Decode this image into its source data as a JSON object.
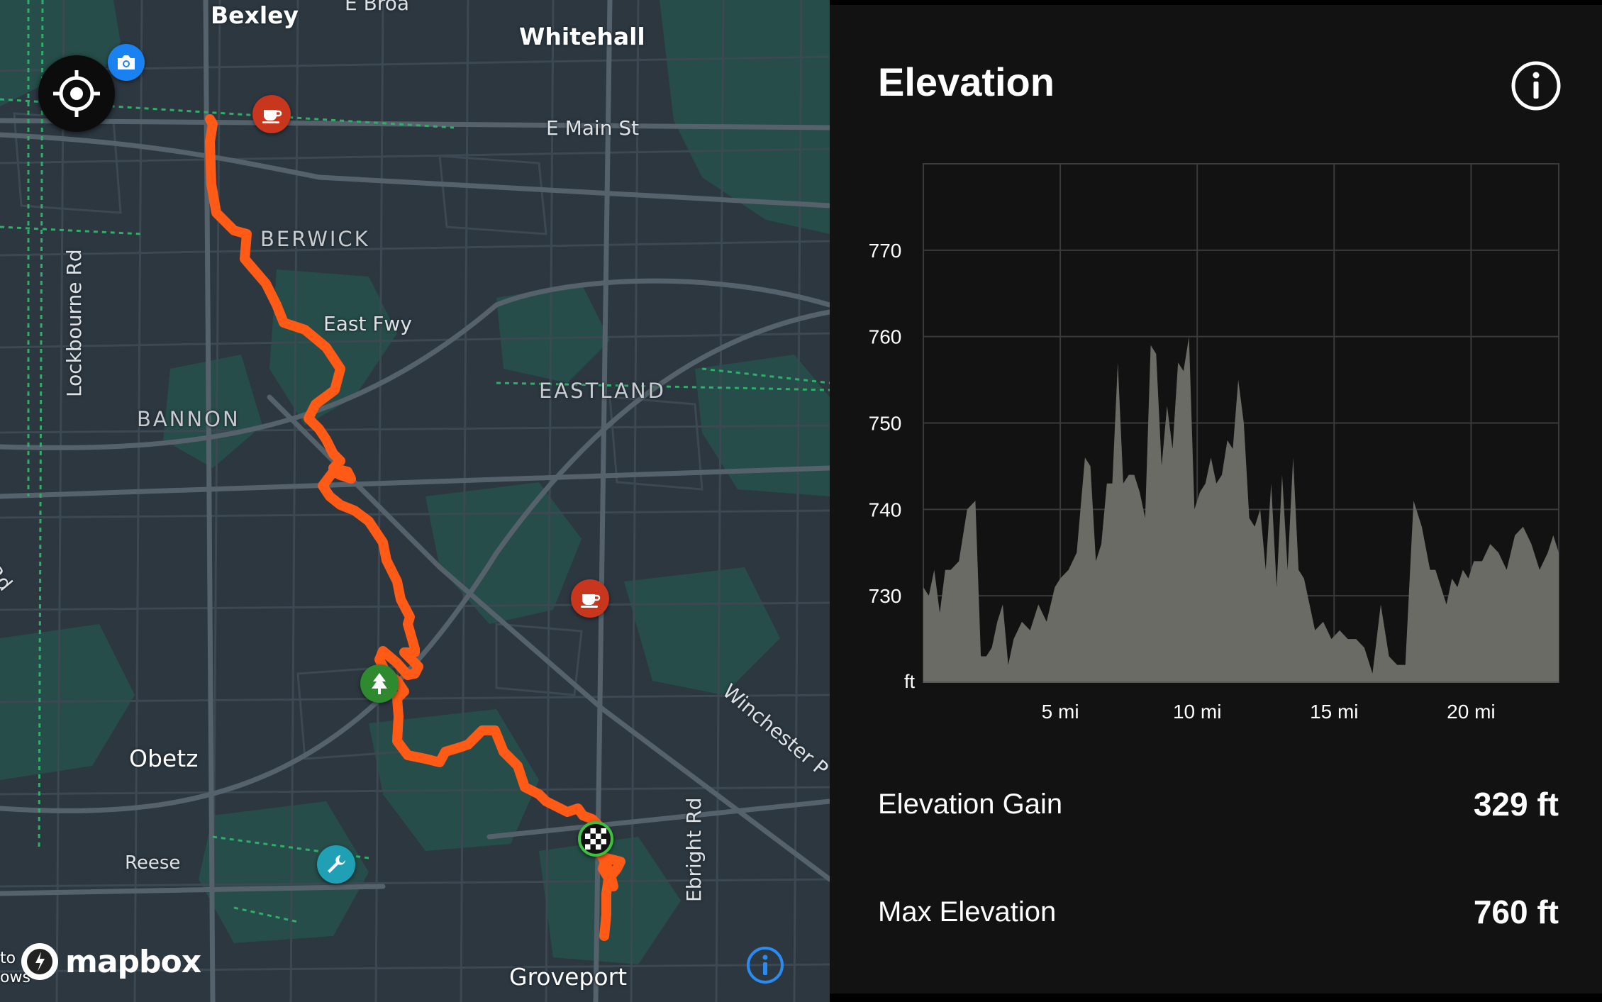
{
  "map": {
    "labels": {
      "bexley": "Bexley",
      "e_broad": "E Broa",
      "whitehall": "Whitehall",
      "e_main": "E Main St",
      "berwick": "BERWICK",
      "lockbourne": "Lockbourne Rd",
      "east_fwy": "East Fwy",
      "eastland": "EASTLAND",
      "bannon": "BANNON",
      "rd_left": "Rd",
      "obetz": "Obetz",
      "reese": "Reese",
      "winchester": "Winchester P",
      "ebright": "Ebright Rd",
      "groveport": "Groveport"
    },
    "attribution_fragment": [
      "to",
      "ows"
    ],
    "logo_text": "mapbox",
    "colors": {
      "route": "#ff5a16",
      "background": "#2c3740",
      "park": "#27524a",
      "road": "#4a5660"
    },
    "pois": [
      {
        "name": "coffee",
        "icon": "coffee-icon",
        "color": "#c8361e"
      },
      {
        "name": "coffee",
        "icon": "coffee-icon",
        "color": "#c8361e"
      },
      {
        "name": "park",
        "icon": "tree-icon",
        "color": "#2f8a2f"
      },
      {
        "name": "repair",
        "icon": "wrench-icon",
        "color": "#1fa0b4"
      },
      {
        "name": "photo",
        "icon": "camera-icon",
        "color": "#1a82f0"
      },
      {
        "name": "finish",
        "icon": "checkered-flag-icon",
        "color": "#111111"
      }
    ]
  },
  "panel": {
    "title": "Elevation",
    "stats": [
      {
        "label": "Elevation Gain",
        "value": "329 ft"
      },
      {
        "label": "Max Elevation",
        "value": "760 ft"
      }
    ]
  },
  "chart_data": {
    "type": "area",
    "title": "Elevation",
    "xlabel": "",
    "ylabel": "ft",
    "xlim": [
      0,
      23.2
    ],
    "ylim": [
      720,
      780
    ],
    "x_ticks": [
      "5 mi",
      "10 mi",
      "15 mi",
      "20 mi"
    ],
    "x_tick_values": [
      5,
      10,
      15,
      20
    ],
    "y_ticks": [
      "770",
      "760",
      "750",
      "740",
      "730"
    ],
    "y_tick_values": [
      770,
      760,
      750,
      740,
      730
    ],
    "grid": true,
    "fill_color": "#6b6b66",
    "x": [
      0,
      0.2,
      0.4,
      0.6,
      0.8,
      1.0,
      1.3,
      1.6,
      1.9,
      2.1,
      2.3,
      2.5,
      2.7,
      2.9,
      3.1,
      3.3,
      3.6,
      3.9,
      4.2,
      4.5,
      4.8,
      5.0,
      5.3,
      5.6,
      5.9,
      6.1,
      6.3,
      6.5,
      6.7,
      6.9,
      7.1,
      7.3,
      7.5,
      7.7,
      7.9,
      8.1,
      8.3,
      8.5,
      8.7,
      8.9,
      9.1,
      9.3,
      9.5,
      9.7,
      9.9,
      10.1,
      10.3,
      10.5,
      10.7,
      10.9,
      11.1,
      11.3,
      11.5,
      11.7,
      11.9,
      12.1,
      12.3,
      12.5,
      12.7,
      12.9,
      13.1,
      13.3,
      13.5,
      13.7,
      13.9,
      14.1,
      14.3,
      14.6,
      14.9,
      15.2,
      15.5,
      15.8,
      16.1,
      16.4,
      16.7,
      17.0,
      17.3,
      17.6,
      17.9,
      18.2,
      18.5,
      18.7,
      18.9,
      19.1,
      19.3,
      19.5,
      19.7,
      19.9,
      20.1,
      20.4,
      20.7,
      21.0,
      21.3,
      21.6,
      21.9,
      22.2,
      22.5,
      22.8,
      23.0,
      23.2
    ],
    "y": [
      731,
      730,
      733,
      728,
      733,
      733,
      734,
      740,
      741,
      723,
      723,
      724,
      727,
      729,
      722,
      725,
      727,
      726,
      729,
      727,
      731,
      732,
      733,
      735,
      746,
      745,
      734,
      736,
      743,
      743,
      757,
      743,
      744,
      744,
      742,
      739,
      759,
      758,
      745,
      752,
      747,
      757,
      756,
      760,
      740,
      742,
      743,
      746,
      743,
      744,
      748,
      747,
      755,
      750,
      739,
      738,
      740,
      733,
      743,
      731,
      744,
      733,
      746,
      733,
      732,
      729,
      726,
      727,
      725,
      726,
      725,
      725,
      724,
      721,
      729,
      723,
      722,
      722,
      741,
      738,
      733,
      733,
      731,
      729,
      732,
      731,
      733,
      732,
      734,
      734,
      736,
      735,
      733,
      737,
      738,
      736,
      733,
      735,
      737,
      735
    ]
  }
}
